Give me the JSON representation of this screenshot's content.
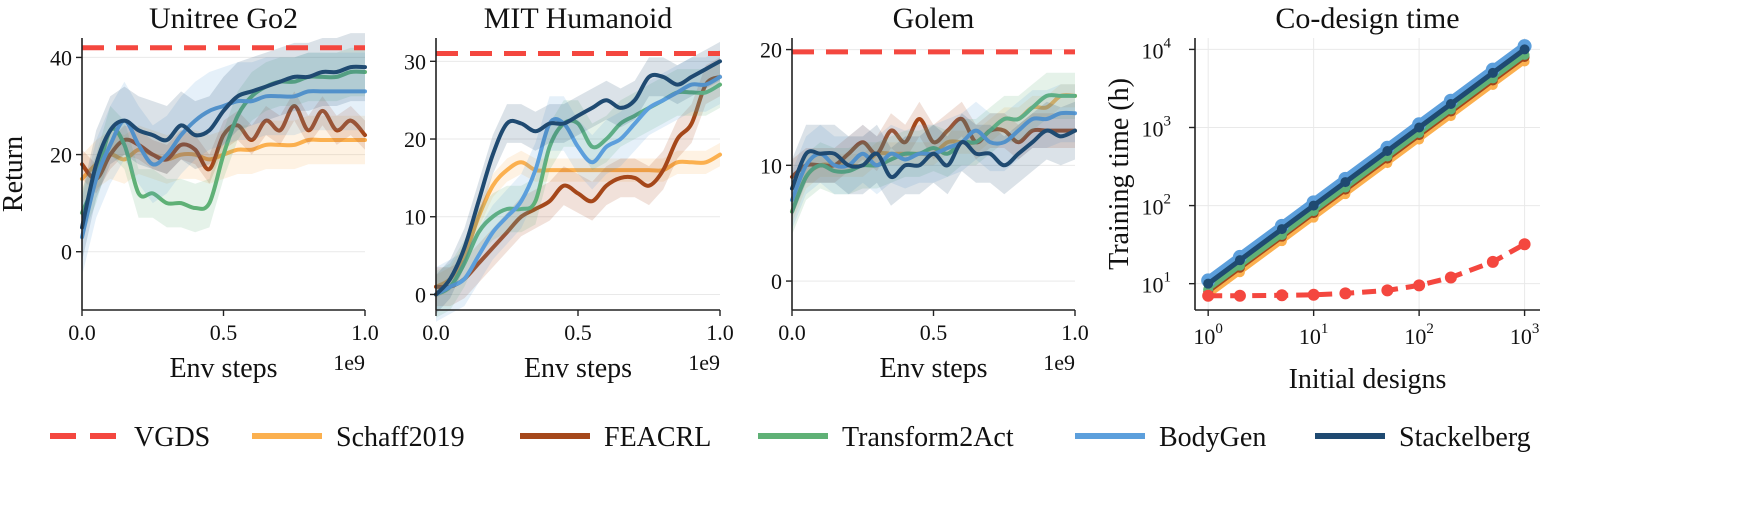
{
  "colors": {
    "VGDS": "#f4473f",
    "Schaff2019": "#fbb04f",
    "FEACRL": "#a5471a",
    "Transform2Act": "#5fb176",
    "BodyGen": "#5c9fdc",
    "Stackelberg": "#1f4a71"
  },
  "legend": {
    "placement": "bottom",
    "entries": [
      {
        "name": "VGDS",
        "style": "dashed"
      },
      {
        "name": "Schaff2019",
        "style": "solid"
      },
      {
        "name": "FEACRL",
        "style": "solid"
      },
      {
        "name": "Transform2Act",
        "style": "solid"
      },
      {
        "name": "BodyGen",
        "style": "solid"
      },
      {
        "name": "Stackelberg",
        "style": "solid"
      }
    ]
  },
  "chart_data": [
    {
      "type": "line",
      "title": "Unitree Go2",
      "xlabel": "Env steps",
      "ylabel": "Return",
      "x_multiplier": "1e9",
      "xlim": [
        0,
        1.0
      ],
      "ylim": [
        -12,
        44
      ],
      "xticks": [
        0.0,
        0.5,
        1.0
      ],
      "xtick_labels": [
        "0.0",
        "0.5",
        "1.0"
      ],
      "yticks": [
        0,
        20,
        40
      ],
      "ytick_labels": [
        "0",
        "20",
        "40"
      ],
      "grid": true,
      "series": [
        {
          "name": "VGDS",
          "x": [
            0.0,
            1.0
          ],
          "y": [
            42,
            42
          ]
        },
        {
          "name": "Schaff2019",
          "x": [
            0,
            0.05,
            0.1,
            0.15,
            0.2,
            0.25,
            0.3,
            0.35,
            0.4,
            0.45,
            0.5,
            0.55,
            0.6,
            0.65,
            0.7,
            0.75,
            0.8,
            0.85,
            0.9,
            0.95,
            1.0
          ],
          "y": [
            15,
            18,
            20,
            19,
            21,
            20,
            19,
            20,
            20,
            19,
            20,
            21,
            21,
            22,
            22,
            22,
            23,
            23,
            23,
            23,
            23
          ]
        },
        {
          "name": "FEACRL",
          "x": [
            0,
            0.05,
            0.1,
            0.15,
            0.2,
            0.25,
            0.3,
            0.35,
            0.4,
            0.45,
            0.5,
            0.55,
            0.6,
            0.65,
            0.7,
            0.75,
            0.8,
            0.85,
            0.9,
            0.95,
            1.0
          ],
          "y": [
            18,
            15,
            20,
            23,
            22,
            20,
            19,
            22,
            21,
            17,
            24,
            26,
            23,
            27,
            25,
            30,
            25,
            29,
            25,
            27,
            24
          ]
        },
        {
          "name": "Transform2Act",
          "x": [
            0,
            0.05,
            0.1,
            0.15,
            0.2,
            0.25,
            0.3,
            0.35,
            0.4,
            0.45,
            0.5,
            0.55,
            0.6,
            0.65,
            0.7,
            0.75,
            0.8,
            0.85,
            0.9,
            0.95,
            1.0
          ],
          "y": [
            8,
            15,
            25,
            22,
            12,
            12,
            10,
            10,
            9,
            10,
            20,
            28,
            32,
            34,
            35,
            35,
            36,
            36,
            36,
            37,
            37
          ]
        },
        {
          "name": "BodyGen",
          "x": [
            0,
            0.05,
            0.1,
            0.15,
            0.2,
            0.25,
            0.3,
            0.35,
            0.4,
            0.45,
            0.5,
            0.55,
            0.6,
            0.65,
            0.7,
            0.75,
            0.8,
            0.85,
            0.9,
            0.95,
            1.0
          ],
          "y": [
            3,
            15,
            22,
            27,
            22,
            18,
            20,
            24,
            27,
            29,
            30,
            31,
            31,
            32,
            32,
            32,
            33,
            33,
            33,
            33,
            33
          ]
        },
        {
          "name": "Stackelberg",
          "x": [
            0,
            0.05,
            0.1,
            0.15,
            0.2,
            0.25,
            0.3,
            0.35,
            0.4,
            0.45,
            0.5,
            0.55,
            0.6,
            0.65,
            0.7,
            0.75,
            0.8,
            0.85,
            0.9,
            0.95,
            1.0
          ],
          "y": [
            5,
            18,
            25,
            27,
            25,
            24,
            23,
            26,
            24,
            25,
            29,
            32,
            33,
            34,
            35,
            36,
            36,
            37,
            37,
            38,
            38
          ]
        }
      ]
    },
    {
      "type": "line",
      "title": "MIT Humanoid",
      "xlabel": "Env steps",
      "ylabel": "",
      "x_multiplier": "1e9",
      "xlim": [
        0,
        1.0
      ],
      "ylim": [
        -2,
        33
      ],
      "xticks": [
        0.0,
        0.5,
        1.0
      ],
      "xtick_labels": [
        "0.0",
        "0.5",
        "1.0"
      ],
      "yticks": [
        0,
        10,
        20,
        30
      ],
      "ytick_labels": [
        "0",
        "10",
        "20",
        "30"
      ],
      "grid": true,
      "series": [
        {
          "name": "VGDS",
          "x": [
            0.0,
            1.0
          ],
          "y": [
            31,
            31
          ]
        },
        {
          "name": "Schaff2019",
          "x": [
            0,
            0.05,
            0.1,
            0.15,
            0.2,
            0.25,
            0.3,
            0.35,
            0.4,
            0.45,
            0.5,
            0.55,
            0.6,
            0.65,
            0.7,
            0.75,
            0.8,
            0.85,
            0.9,
            0.95,
            1.0
          ],
          "y": [
            1,
            2,
            5,
            10,
            14,
            16,
            17,
            16,
            16,
            16,
            16,
            16,
            16,
            16,
            16,
            16,
            16,
            17,
            17,
            17,
            18
          ]
        },
        {
          "name": "FEACRL",
          "x": [
            0,
            0.05,
            0.1,
            0.15,
            0.2,
            0.25,
            0.3,
            0.35,
            0.4,
            0.45,
            0.5,
            0.55,
            0.6,
            0.65,
            0.7,
            0.75,
            0.8,
            0.85,
            0.9,
            0.95,
            1.0
          ],
          "y": [
            1,
            1,
            2,
            4,
            6,
            8,
            10,
            11,
            12,
            14,
            13,
            12,
            14,
            15,
            15,
            14,
            16,
            20,
            22,
            27,
            28
          ]
        },
        {
          "name": "Transform2Act",
          "x": [
            0,
            0.05,
            0.1,
            0.15,
            0.2,
            0.25,
            0.3,
            0.35,
            0.4,
            0.45,
            0.5,
            0.55,
            0.6,
            0.65,
            0.7,
            0.75,
            0.8,
            0.85,
            0.9,
            0.95,
            1.0
          ],
          "y": [
            0,
            1,
            4,
            8,
            10,
            11,
            11,
            12,
            19,
            22,
            22,
            19,
            20,
            22,
            23,
            24,
            25,
            26,
            26,
            26,
            27
          ]
        },
        {
          "name": "BodyGen",
          "x": [
            0,
            0.05,
            0.1,
            0.15,
            0.2,
            0.25,
            0.3,
            0.35,
            0.4,
            0.45,
            0.5,
            0.55,
            0.6,
            0.65,
            0.7,
            0.75,
            0.8,
            0.85,
            0.9,
            0.95,
            1.0
          ],
          "y": [
            0,
            1,
            2,
            5,
            8,
            10,
            12,
            16,
            22,
            22,
            19,
            17,
            19,
            20,
            22,
            24,
            25,
            26,
            27,
            27,
            28
          ]
        },
        {
          "name": "Stackelberg",
          "x": [
            0,
            0.05,
            0.1,
            0.15,
            0.2,
            0.25,
            0.3,
            0.35,
            0.4,
            0.45,
            0.5,
            0.55,
            0.6,
            0.65,
            0.7,
            0.75,
            0.8,
            0.85,
            0.9,
            0.95,
            1.0
          ],
          "y": [
            0,
            2,
            6,
            12,
            18,
            22,
            22,
            21,
            22,
            22,
            23,
            24,
            25,
            24,
            25,
            28,
            28,
            27,
            28,
            29,
            30
          ]
        }
      ]
    },
    {
      "type": "line",
      "title": "Golem",
      "xlabel": "Env steps",
      "ylabel": "",
      "x_multiplier": "1e9",
      "xlim": [
        0,
        1.0
      ],
      "ylim": [
        -2.5,
        21
      ],
      "xticks": [
        0.0,
        0.5,
        1.0
      ],
      "xtick_labels": [
        "0.0",
        "0.5",
        "1.0"
      ],
      "yticks": [
        0,
        10,
        20
      ],
      "ytick_labels": [
        "0",
        "10",
        "20"
      ],
      "grid": true,
      "series": [
        {
          "name": "VGDS",
          "x": [
            0.0,
            1.0
          ],
          "y": [
            19.8,
            19.8
          ]
        },
        {
          "name": "Schaff2019",
          "x": [
            0,
            0.05,
            0.1,
            0.15,
            0.2,
            0.25,
            0.3,
            0.35,
            0.4,
            0.45,
            0.5,
            0.55,
            0.6,
            0.65,
            0.7,
            0.75,
            0.8,
            0.85,
            0.9,
            0.95,
            1.0
          ],
          "y": [
            6,
            9,
            10,
            10,
            10,
            10,
            11,
            11,
            11,
            11,
            11,
            12,
            12,
            12,
            13,
            14,
            14,
            15,
            15,
            16,
            16
          ]
        },
        {
          "name": "FEACRL",
          "x": [
            0,
            0.05,
            0.1,
            0.15,
            0.2,
            0.25,
            0.3,
            0.35,
            0.4,
            0.45,
            0.5,
            0.55,
            0.6,
            0.65,
            0.7,
            0.75,
            0.8,
            0.85,
            0.9,
            0.95,
            1.0
          ],
          "y": [
            9,
            10,
            10,
            10,
            11,
            12,
            11,
            13,
            12,
            14,
            12,
            13,
            14,
            12,
            13,
            13,
            12,
            13,
            13,
            13,
            13
          ]
        },
        {
          "name": "Transform2Act",
          "x": [
            0,
            0.05,
            0.1,
            0.15,
            0.2,
            0.25,
            0.3,
            0.35,
            0.4,
            0.45,
            0.5,
            0.55,
            0.6,
            0.65,
            0.7,
            0.75,
            0.8,
            0.85,
            0.9,
            0.95,
            1.0
          ],
          "y": [
            6,
            9,
            10,
            9.5,
            9.5,
            10,
            10,
            10.5,
            11,
            11,
            11.5,
            11,
            12,
            12,
            13,
            14,
            14,
            15,
            16,
            16,
            16
          ]
        },
        {
          "name": "BodyGen",
          "x": [
            0,
            0.05,
            0.1,
            0.15,
            0.2,
            0.25,
            0.3,
            0.35,
            0.4,
            0.45,
            0.5,
            0.55,
            0.6,
            0.65,
            0.7,
            0.75,
            0.8,
            0.85,
            0.9,
            0.95,
            1.0
          ],
          "y": [
            7,
            10,
            11,
            10,
            10,
            11,
            10,
            11,
            10.5,
            11,
            11,
            11.5,
            12,
            13,
            12,
            12,
            13,
            14,
            14,
            14.5,
            14.5
          ]
        },
        {
          "name": "Stackelberg",
          "x": [
            0,
            0.05,
            0.1,
            0.15,
            0.2,
            0.25,
            0.3,
            0.35,
            0.4,
            0.45,
            0.5,
            0.55,
            0.6,
            0.65,
            0.7,
            0.75,
            0.8,
            0.85,
            0.9,
            0.95,
            1.0
          ],
          "y": [
            8,
            11,
            11,
            11,
            10,
            10,
            11,
            9,
            10,
            10,
            11,
            10,
            12,
            11,
            11,
            10,
            11,
            12,
            13,
            12.5,
            13
          ]
        }
      ]
    },
    {
      "type": "line",
      "title": "Co-design time",
      "xlabel": "Initial designs",
      "ylabel": "Training time (h)",
      "xscale": "log",
      "yscale": "log",
      "xlim": [
        0.75,
        1400
      ],
      "ylim": [
        4.6,
        14000
      ],
      "xticks": [
        1,
        10,
        100,
        1000
      ],
      "xtick_bases": [
        "10",
        "10",
        "10",
        "10"
      ],
      "xtick_exps": [
        "0",
        "1",
        "2",
        "3"
      ],
      "yticks": [
        10,
        100,
        1000,
        10000
      ],
      "ytick_bases": [
        "10",
        "10",
        "10",
        "10"
      ],
      "ytick_exps": [
        "1",
        "2",
        "3",
        "4"
      ],
      "grid": true,
      "markers": true,
      "series": [
        {
          "name": "VGDS",
          "x": [
            1,
            2,
            5,
            10,
            20,
            50,
            100,
            200,
            500,
            1000
          ],
          "y": [
            7,
            7,
            7.1,
            7.2,
            7.5,
            8.2,
            9.5,
            12,
            19,
            32
          ]
        },
        {
          "name": "Schaff2019",
          "x": [
            1,
            2,
            5,
            10,
            20,
            50,
            100,
            200,
            500,
            1000
          ],
          "y": [
            7,
            14,
            35,
            70,
            140,
            350,
            700,
            1400,
            3500,
            7000
          ]
        },
        {
          "name": "FEACRL",
          "x": [
            1,
            2,
            5,
            10,
            20,
            50,
            100,
            200,
            500,
            1000
          ],
          "y": [
            8,
            16,
            40,
            80,
            160,
            400,
            800,
            1600,
            4000,
            8000
          ]
        },
        {
          "name": "Transform2Act",
          "x": [
            1,
            2,
            5,
            10,
            20,
            50,
            100,
            200,
            500,
            1000
          ],
          "y": [
            8.5,
            17,
            42,
            85,
            170,
            425,
            850,
            1700,
            4250,
            8500
          ]
        },
        {
          "name": "BodyGen",
          "x": [
            1,
            2,
            5,
            10,
            20,
            50,
            100,
            200,
            500,
            1000
          ],
          "y": [
            11,
            22,
            55,
            110,
            220,
            550,
            1100,
            2200,
            5500,
            11000
          ]
        },
        {
          "name": "Stackelberg",
          "x": [
            1,
            2,
            5,
            10,
            20,
            50,
            100,
            200,
            500,
            1000
          ],
          "y": [
            10,
            20,
            50,
            100,
            200,
            500,
            1000,
            2000,
            5000,
            10000
          ]
        }
      ]
    }
  ]
}
